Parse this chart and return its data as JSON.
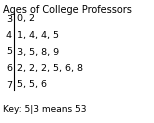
{
  "title": "Ages of College Professors",
  "rows": [
    {
      "stem": "3",
      "leaves": "0, 2"
    },
    {
      "stem": "4",
      "leaves": "1, 4, 4, 5"
    },
    {
      "stem": "5",
      "leaves": "3, 5, 8, 9"
    },
    {
      "stem": "6",
      "leaves": "2, 2, 2, 5, 6, 8"
    },
    {
      "stem": "7",
      "leaves": "5, 5, 6"
    }
  ],
  "key": "Key: 5|3 means 53",
  "bg_color": "#ffffff",
  "text_color": "#000000",
  "title_fontsize": 7.0,
  "body_fontsize": 6.8,
  "key_fontsize": 6.5
}
